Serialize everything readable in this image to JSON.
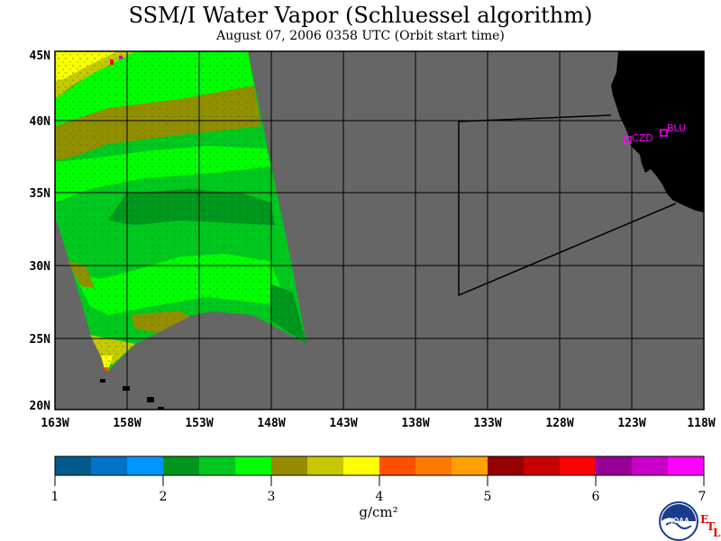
{
  "title": "SSM/I Water Vapor (Schluessel algorithm)",
  "subtitle": "August 07, 2006   0358 UTC   (Orbit start time)",
  "map": {
    "lat_labels": [
      "45N",
      "40N",
      "35N",
      "30N",
      "25N",
      "20N"
    ],
    "lon_labels": [
      "163W",
      "158W",
      "153W",
      "148W",
      "143W",
      "138W",
      "133W",
      "128W",
      "123W",
      "118W"
    ],
    "stations": [
      {
        "code": "CZD",
        "color": "#ff00ff"
      },
      {
        "code": "BLU",
        "color": "#ff00ff"
      }
    ],
    "no_data_color": "#666666",
    "land_color": "#000000"
  },
  "colorbar": {
    "colors": [
      "#005a8c",
      "#0073c8",
      "#0096ff",
      "#00961e",
      "#00c81e",
      "#00ff00",
      "#968c00",
      "#c8c800",
      "#ffff00",
      "#ff5000",
      "#ff7800",
      "#ffa000",
      "#960000",
      "#c80000",
      "#ff0000",
      "#960096",
      "#c800c8",
      "#ff00ff"
    ],
    "tick_labels": [
      "1",
      "2",
      "3",
      "4",
      "5",
      "6",
      "7"
    ],
    "units": "g/cm²"
  },
  "logo": {
    "text": "NOAA"
  },
  "lab_mark": {
    "letters": [
      "E",
      "T",
      "L"
    ],
    "color": "#e00000"
  }
}
